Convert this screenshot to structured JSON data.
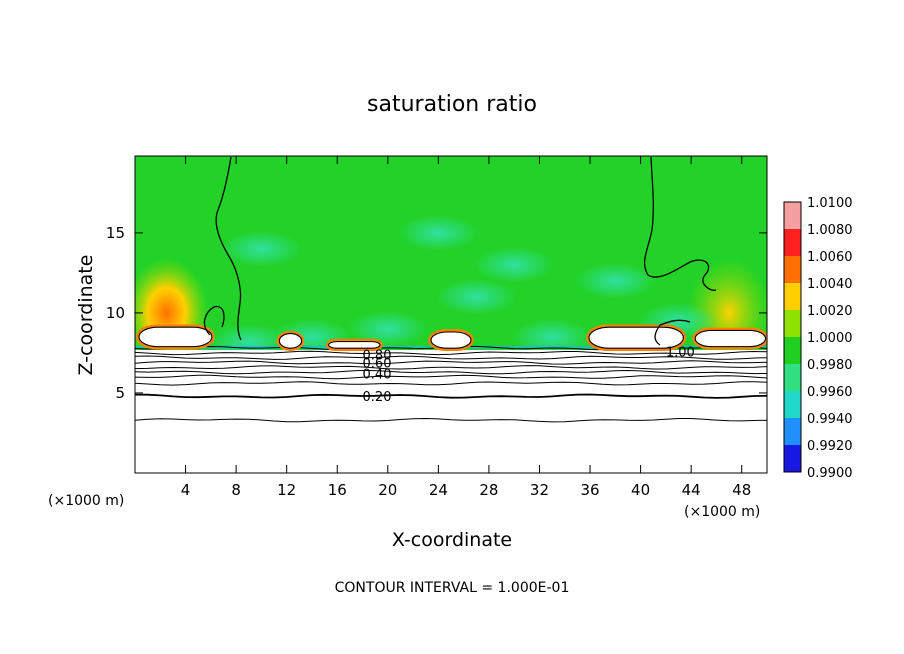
{
  "chart_data": {
    "type": "heatmap",
    "title": "saturation ratio",
    "xlabel": "X-coordinate",
    "ylabel": "Z-coordinate",
    "x_unit_left": "(×1000 m)",
    "x_unit_right": "(×1000 m)",
    "footer": "CONTOUR INTERVAL = 1.000E-01",
    "xlim": [
      0,
      50
    ],
    "ylim": [
      0,
      19.8
    ],
    "x_ticks": [
      "4",
      "8",
      "12",
      "16",
      "20",
      "24",
      "28",
      "32",
      "36",
      "40",
      "44",
      "48"
    ],
    "x_tick_values": [
      4,
      8,
      12,
      16,
      20,
      24,
      28,
      32,
      36,
      40,
      44,
      48
    ],
    "y_ticks": [
      "5",
      "10",
      "15"
    ],
    "y_tick_values": [
      5,
      10,
      15
    ],
    "colorbar": {
      "labels": [
        "1.0100",
        "1.0080",
        "1.0060",
        "1.0040",
        "1.0020",
        "1.0000",
        "0.9980",
        "0.9960",
        "0.9940",
        "0.9920",
        "0.9900"
      ],
      "colors": [
        "#f4a0a0",
        "#ff2020",
        "#ff7000",
        "#ffd000",
        "#90e000",
        "#20d020",
        "#30e080",
        "#20d8c8",
        "#2090ff",
        "#1818e0",
        "#5010a0"
      ]
    },
    "contour_labels": [
      {
        "text": "0.20",
        "x": 18.0,
        "y": 4.8
      },
      {
        "text": "0.40",
        "x": 18.0,
        "y": 6.2
      },
      {
        "text": "0.60",
        "x": 18.0,
        "y": 6.9
      },
      {
        "text": "0.80",
        "x": 18.0,
        "y": 7.4
      },
      {
        "text": "1.00",
        "x": 42.0,
        "y": 7.6
      }
    ],
    "contour_levels_below": [
      3.3,
      4.8,
      5.6,
      6.0,
      6.3,
      6.6,
      6.9,
      7.2,
      7.5,
      7.8
    ],
    "features": [
      {
        "kind": "background",
        "value": 1.0002,
        "z_range": [
          7.8,
          19.8
        ]
      },
      {
        "kind": "subsaturated",
        "value": "< 0.99",
        "z_range": [
          0,
          7.8
        ]
      },
      {
        "kind": "supersaturated",
        "value": 1.004,
        "x_center": 2.5,
        "z_center": 10.0
      },
      {
        "kind": "supersaturated",
        "value": 1.002,
        "x_center": 47.0,
        "z_center": 10.0
      },
      {
        "kind": "cloud",
        "x_range": [
          0.2,
          6.2
        ],
        "z_range": [
          7.8,
          9.2
        ]
      },
      {
        "kind": "cloud",
        "x_range": [
          11.3,
          13.3
        ],
        "z_range": [
          7.7,
          8.8
        ]
      },
      {
        "kind": "cloud",
        "x_range": [
          15.2,
          19.5
        ],
        "z_range": [
          7.7,
          8.3
        ]
      },
      {
        "kind": "cloud",
        "x_range": [
          23.3,
          26.7
        ],
        "z_range": [
          7.7,
          8.9
        ]
      },
      {
        "kind": "cloud",
        "x_range": [
          35.8,
          43.5
        ],
        "z_range": [
          7.7,
          9.2
        ]
      },
      {
        "kind": "cloud",
        "x_range": [
          44.2,
          50.0
        ],
        "z_range": [
          7.8,
          9.0
        ]
      }
    ]
  }
}
